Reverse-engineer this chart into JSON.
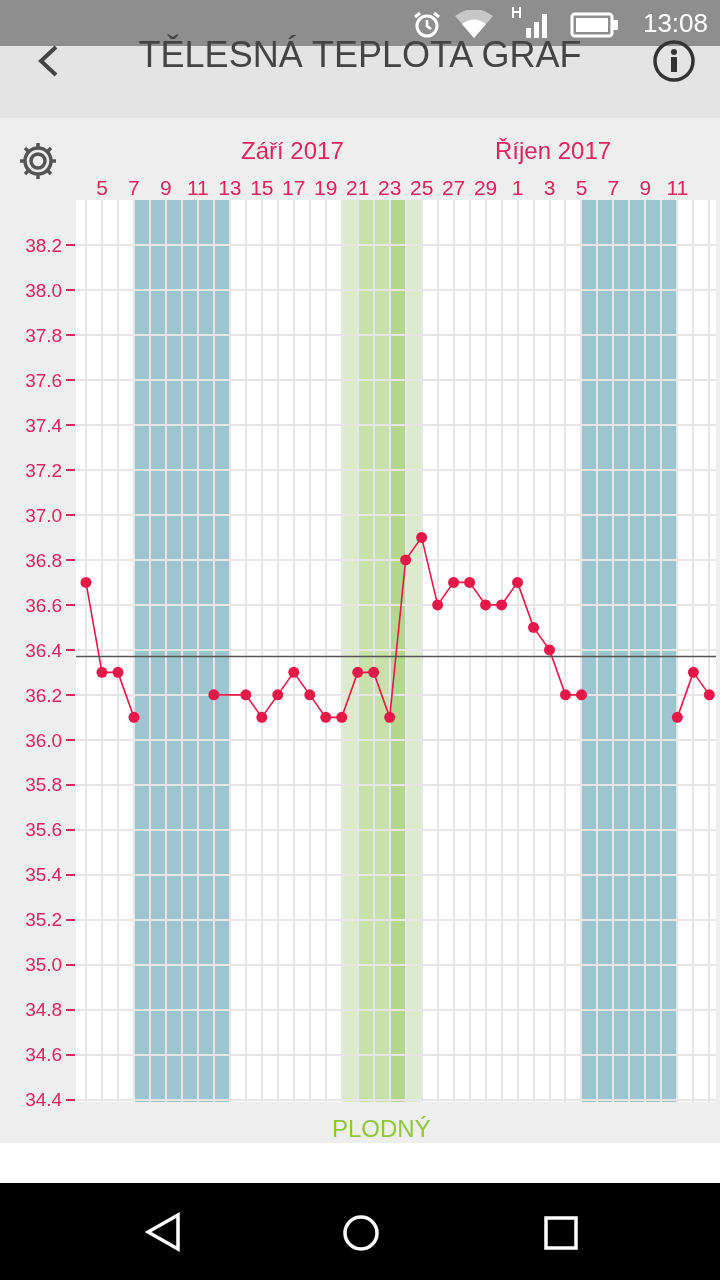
{
  "chart_data": {
    "type": "line",
    "title": "TĚLESNÁ TEPLOTA GRAF",
    "annotations": [
      "Září 2017",
      "Říjen 2017",
      "13:08"
    ],
    "x": [
      "2017-09-04",
      "2017-09-05",
      "2017-09-06",
      "2017-09-07",
      "2017-09-08",
      "2017-09-12",
      "2017-09-14",
      "2017-09-15",
      "2017-09-16",
      "2017-09-17",
      "2017-09-18",
      "2017-09-19",
      "2017-09-20",
      "2017-09-21",
      "2017-09-22",
      "2017-09-23",
      "2017-09-24",
      "2017-09-25",
      "2017-09-26",
      "2017-09-27",
      "2017-09-28",
      "2017-09-29",
      "2017-09-30",
      "2017-10-01",
      "2017-10-02",
      "2017-10-03",
      "2017-10-04",
      "2017-10-05",
      "2017-10-06",
      "2017-10-11",
      "2017-10-12",
      "2017-10-13"
    ],
    "series": [
      {
        "color": "#e8174a",
        "values": [
          36.7,
          36.3,
          36.3,
          36.1,
          null,
          36.2,
          36.2,
          36.1,
          36.2,
          36.3,
          36.2,
          36.1,
          36.1,
          36.3,
          36.3,
          36.1,
          36.8,
          36.9,
          36.6,
          36.7,
          36.7,
          36.6,
          36.6,
          36.7,
          36.5,
          36.4,
          36.2,
          36.2,
          null,
          36.1,
          36.3,
          36.2
        ]
      }
    ],
    "xlim": [
      "2017-09-03T09:00",
      "2017-10-13T10:00"
    ],
    "xticks": [
      {
        "value": "2017-09-05",
        "label": "5"
      },
      {
        "value": "2017-09-07",
        "label": "7"
      },
      {
        "value": "2017-09-09",
        "label": "9"
      },
      {
        "value": "2017-09-11",
        "label": "11"
      },
      {
        "value": "2017-09-13",
        "label": "13"
      },
      {
        "value": "2017-09-15",
        "label": "15"
      },
      {
        "value": "2017-09-17",
        "label": "17"
      },
      {
        "value": "2017-09-19",
        "label": "19"
      },
      {
        "value": "2017-09-21",
        "label": "21"
      },
      {
        "value": "2017-09-23",
        "label": "23"
      },
      {
        "value": "2017-09-25",
        "label": "25"
      },
      {
        "value": "2017-09-27",
        "label": "27"
      },
      {
        "value": "2017-09-29",
        "label": "29"
      },
      {
        "value": "2017-10-01",
        "label": "1"
      },
      {
        "value": "2017-10-03",
        "label": "3"
      },
      {
        "value": "2017-10-05",
        "label": "5"
      },
      {
        "value": "2017-10-07",
        "label": "7"
      },
      {
        "value": "2017-10-09",
        "label": "9"
      },
      {
        "value": "2017-10-11",
        "label": "11"
      }
    ],
    "ylim": [
      34.39,
      38.4
    ],
    "yticks": [
      34.4,
      34.6,
      34.8,
      {
        "value": 35,
        "label": "35.0"
      },
      35.2,
      35.4,
      35.6,
      35.8,
      {
        "value": 36,
        "label": "36.0"
      },
      36.2,
      36.4,
      36.6,
      36.8,
      {
        "value": 37,
        "label": "37.0"
      },
      37.2,
      37.4,
      37.6,
      37.8,
      {
        "value": 38,
        "label": "38.0"
      },
      38.2
    ],
    "bands": [
      {
        "axis": "x",
        "from": "2017-09-07",
        "to": "2017-09-13",
        "color": "#9cc5cf"
      },
      {
        "axis": "x",
        "from": "2017-10-05",
        "to": "2017-10-11",
        "color": "#9cc5cf"
      },
      {
        "axis": "x",
        "from": "2017-09-20",
        "to": "2017-09-25",
        "color": "#dcebcc",
        "label": "PLODNÝ"
      },
      {
        "axis": "x",
        "from": "2017-09-21",
        "to": "2017-09-23",
        "color": "#c6e1a9"
      },
      {
        "axis": "x",
        "from": "2017-09-23",
        "to": "2017-09-24",
        "color": "#b2d78d"
      }
    ],
    "ref_lines": [
      {
        "axis": "y",
        "value": 36.37,
        "color": "#555555"
      }
    ],
    "grid": true,
    "marker": "circle",
    "line_style": "solid"
  }
}
